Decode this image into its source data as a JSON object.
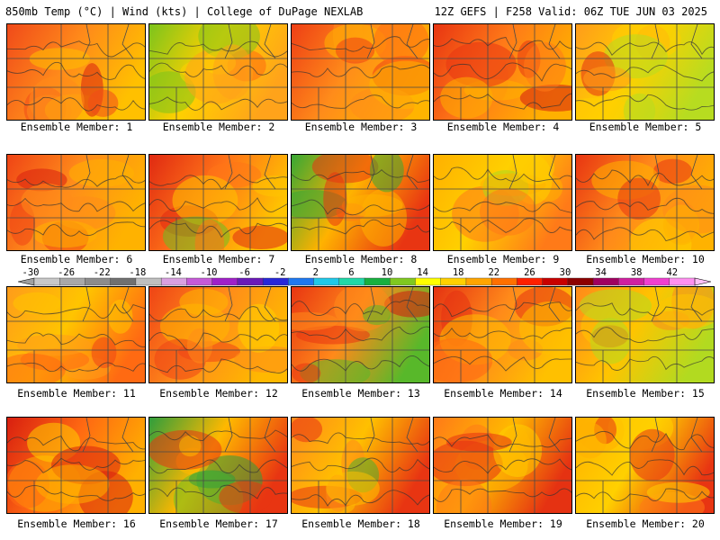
{
  "header": {
    "left": "850mb Temp (°C) | Wind (kts) | College of DuPage NEXLAB",
    "right": "12Z GEFS | F258 Valid: 06Z TUE JUN 03 2025"
  },
  "panels": [
    {
      "label": "Ensemble Member: 1",
      "colors": [
        "#f04a1a",
        "#ff8a1a",
        "#ffc000",
        "#d81f10"
      ]
    },
    {
      "label": "Ensemble Member: 2",
      "colors": [
        "#7cc41c",
        "#ffd000",
        "#ffa31a",
        "#ff6a10"
      ]
    },
    {
      "label": "Ensemble Member: 3",
      "colors": [
        "#ee3f15",
        "#ff8c1a",
        "#ffb400",
        "#ff6b12"
      ]
    },
    {
      "label": "Ensemble Member: 4",
      "colors": [
        "#e83512",
        "#ff7a18",
        "#ffb000",
        "#d61c10"
      ]
    },
    {
      "label": "Ensemble Member: 5",
      "colors": [
        "#ff9c1a",
        "#ffd000",
        "#b7dc20",
        "#e33012"
      ]
    },
    {
      "label": "Ensemble Member: 6",
      "colors": [
        "#ef4416",
        "#ff8c1a",
        "#ffb200",
        "#d81f10"
      ]
    },
    {
      "label": "Ensemble Member: 7",
      "colors": [
        "#e02a12",
        "#ff7418",
        "#ffc400",
        "#6cbf22"
      ]
    },
    {
      "label": "Ensemble Member: 8",
      "colors": [
        "#38a834",
        "#ffb200",
        "#e83512",
        "#ff7a18"
      ]
    },
    {
      "label": "Ensemble Member: 9",
      "colors": [
        "#ffb000",
        "#ffd000",
        "#ff7a18",
        "#a8d820"
      ]
    },
    {
      "label": "Ensemble Member: 10",
      "colors": [
        "#e83512",
        "#ff8a1a",
        "#ffb200",
        "#ffd000"
      ]
    },
    {
      "label": "Ensemble Member: 11",
      "colors": [
        "#ff9c1a",
        "#ffc400",
        "#ff6a12",
        "#ee4416"
      ]
    },
    {
      "label": "Ensemble Member: 12",
      "colors": [
        "#ef4416",
        "#ff8c1a",
        "#ffb800",
        "#ffd000"
      ]
    },
    {
      "label": "Ensemble Member: 13",
      "colors": [
        "#e83512",
        "#ff8a1a",
        "#58b82a",
        "#d01a10"
      ]
    },
    {
      "label": "Ensemble Member: 14",
      "colors": [
        "#e53212",
        "#ff8a1a",
        "#ffc000",
        "#ff6812"
      ]
    },
    {
      "label": "Ensemble Member: 15",
      "colors": [
        "#ff8a1a",
        "#ffc400",
        "#b2da20",
        "#ef4416"
      ]
    },
    {
      "label": "Ensemble Member: 16",
      "colors": [
        "#d81f10",
        "#ff6a12",
        "#ffb000",
        "#ffd000"
      ]
    },
    {
      "label": "Ensemble Member: 17",
      "colors": [
        "#2f9e3c",
        "#ffb800",
        "#e83512",
        "#6cbf22"
      ]
    },
    {
      "label": "Ensemble Member: 18",
      "colors": [
        "#ff8a1a",
        "#ffc000",
        "#e83512",
        "#4cae2e"
      ]
    },
    {
      "label": "Ensemble Member: 19",
      "colors": [
        "#ff7a18",
        "#ffb800",
        "#e53212",
        "#ffd000"
      ]
    },
    {
      "label": "Ensemble Member: 20",
      "colors": [
        "#ffb000",
        "#ffd000",
        "#e83512",
        "#ff7a18"
      ]
    }
  ],
  "colorbar": {
    "labels": [
      "-30",
      "-26",
      "-22",
      "-18",
      "-14",
      "-10",
      "-6",
      "-2",
      "2",
      "6",
      "10",
      "14",
      "18",
      "22",
      "26",
      "30",
      "34",
      "38",
      "42"
    ],
    "colors": [
      "#c8c8c8",
      "#a8a8a8",
      "#8c8c8c",
      "#707070",
      "#bfbfbf",
      "#d9a0e0",
      "#c65ad8",
      "#a020c8",
      "#6a1ab8",
      "#2828d8",
      "#1e78f0",
      "#20c8e8",
      "#20d8a8",
      "#18b040",
      "#80c820",
      "#ffff00",
      "#ffd000",
      "#ffa500",
      "#ff7000",
      "#ff2000",
      "#c80000",
      "#8c0000",
      "#a00060",
      "#d020a0",
      "#f040d0",
      "#ff90f0"
    ]
  }
}
